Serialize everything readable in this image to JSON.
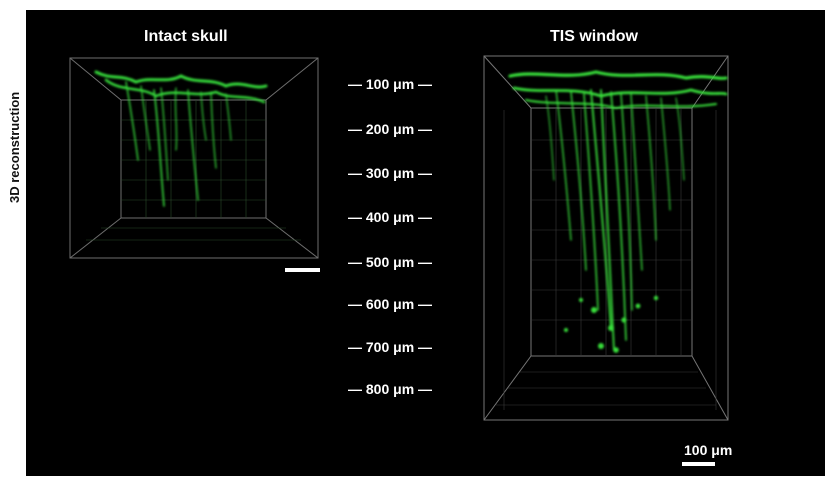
{
  "figure": {
    "row_label": "3D reconstruction",
    "left_panel_title": "Intact skull",
    "right_panel_title": "TIS window",
    "depth_labels": [
      "— 100 μm —",
      "— 200 μm —",
      "— 300 μm —",
      "— 400 μm —",
      "— 500 μm —",
      "— 600 μm —",
      "— 700 μm —",
      "— 800 μm —"
    ],
    "scale_bar_label": "100 μm",
    "colors": {
      "background": "#000000",
      "fluorescence": "#39e83c",
      "grid": "#7a7a7a",
      "text": "#ffffff"
    }
  }
}
